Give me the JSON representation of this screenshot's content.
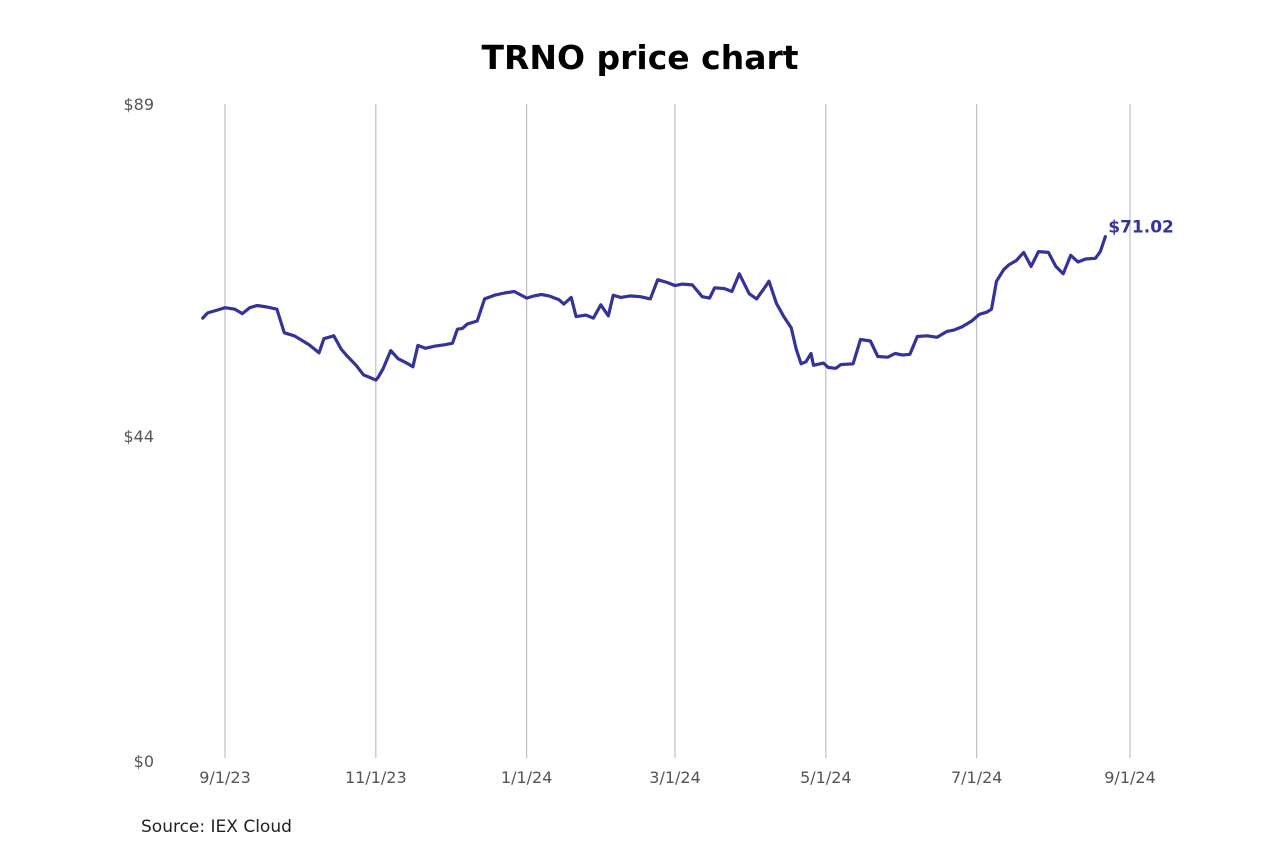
{
  "title": "TRNO price chart",
  "source": "Source: IEX Cloud",
  "colors": {
    "line": "#33339a",
    "grid": "#b4b4b4"
  },
  "chart_data": {
    "type": "line",
    "title": "TRNO price chart",
    "ylim": [
      0,
      89
    ],
    "xlim": [
      "2023-08-23",
      "2024-09-01"
    ],
    "y_ticks": [
      {
        "value": 0,
        "label": "$0"
      },
      {
        "value": 44,
        "label": "$44"
      },
      {
        "value": 89,
        "label": "$89"
      }
    ],
    "x_ticks": [
      {
        "date": "2023-09-01",
        "label": "9/1/23"
      },
      {
        "date": "2023-11-01",
        "label": "11/1/23"
      },
      {
        "date": "2024-01-01",
        "label": "1/1/24"
      },
      {
        "date": "2024-03-01",
        "label": "3/1/24"
      },
      {
        "date": "2024-05-01",
        "label": "5/1/24"
      },
      {
        "date": "2024-07-01",
        "label": "7/1/24"
      },
      {
        "date": "2024-09-01",
        "label": "9/1/24"
      }
    ],
    "grid": "vertical",
    "last_value_label": "$71.02",
    "series": [
      {
        "points": [
          [
            "2023-08-23",
            60.0
          ],
          [
            "2023-08-25",
            60.7
          ],
          [
            "2023-08-29",
            61.1
          ],
          [
            "2023-09-01",
            61.4
          ],
          [
            "2023-09-05",
            61.2
          ],
          [
            "2023-09-08",
            60.6
          ],
          [
            "2023-09-11",
            61.4
          ],
          [
            "2023-09-14",
            61.7
          ],
          [
            "2023-09-18",
            61.5
          ],
          [
            "2023-09-22",
            61.2
          ],
          [
            "2023-09-25",
            58.0
          ],
          [
            "2023-09-29",
            57.6
          ],
          [
            "2023-10-02",
            57.0
          ],
          [
            "2023-10-05",
            56.4
          ],
          [
            "2023-10-09",
            55.3
          ],
          [
            "2023-10-11",
            57.2
          ],
          [
            "2023-10-15",
            57.6
          ],
          [
            "2023-10-18",
            55.8
          ],
          [
            "2023-10-20",
            55.0
          ],
          [
            "2023-10-24",
            53.6
          ],
          [
            "2023-10-27",
            52.3
          ],
          [
            "2023-10-30",
            51.9
          ],
          [
            "2023-11-01",
            51.6
          ],
          [
            "2023-11-02",
            52.0
          ],
          [
            "2023-11-04",
            53.2
          ],
          [
            "2023-11-07",
            55.6
          ],
          [
            "2023-11-10",
            54.5
          ],
          [
            "2023-11-13",
            54.0
          ],
          [
            "2023-11-16",
            53.4
          ],
          [
            "2023-11-18",
            56.3
          ],
          [
            "2023-11-21",
            55.9
          ],
          [
            "2023-11-25",
            56.2
          ],
          [
            "2023-11-29",
            56.4
          ],
          [
            "2023-12-02",
            56.6
          ],
          [
            "2023-12-04",
            58.5
          ],
          [
            "2023-12-06",
            58.6
          ],
          [
            "2023-12-08",
            59.2
          ],
          [
            "2023-12-12",
            59.6
          ],
          [
            "2023-12-15",
            62.6
          ],
          [
            "2023-12-19",
            63.1
          ],
          [
            "2023-12-23",
            63.4
          ],
          [
            "2023-12-27",
            63.6
          ],
          [
            "2024-01-01",
            62.7
          ],
          [
            "2024-01-04",
            63.0
          ],
          [
            "2024-01-07",
            63.2
          ],
          [
            "2024-01-10",
            63.0
          ],
          [
            "2024-01-14",
            62.5
          ],
          [
            "2024-01-16",
            61.9
          ],
          [
            "2024-01-19",
            62.8
          ],
          [
            "2024-01-21",
            60.2
          ],
          [
            "2024-01-25",
            60.4
          ],
          [
            "2024-01-28",
            60.0
          ],
          [
            "2024-01-31",
            61.8
          ],
          [
            "2024-02-03",
            60.3
          ],
          [
            "2024-02-05",
            63.1
          ],
          [
            "2024-02-08",
            62.8
          ],
          [
            "2024-02-12",
            63.0
          ],
          [
            "2024-02-16",
            62.9
          ],
          [
            "2024-02-20",
            62.6
          ],
          [
            "2024-02-23",
            65.2
          ],
          [
            "2024-02-27",
            64.8
          ],
          [
            "2024-03-01",
            64.4
          ],
          [
            "2024-03-04",
            64.6
          ],
          [
            "2024-03-08",
            64.5
          ],
          [
            "2024-03-12",
            62.9
          ],
          [
            "2024-03-15",
            62.7
          ],
          [
            "2024-03-17",
            64.1
          ],
          [
            "2024-03-21",
            64.0
          ],
          [
            "2024-03-24",
            63.6
          ],
          [
            "2024-03-27",
            66.0
          ],
          [
            "2024-03-31",
            63.3
          ],
          [
            "2024-04-03",
            62.6
          ],
          [
            "2024-04-06",
            64.0
          ],
          [
            "2024-04-08",
            65.0
          ],
          [
            "2024-04-11",
            62.0
          ],
          [
            "2024-04-14",
            60.2
          ],
          [
            "2024-04-17",
            58.7
          ],
          [
            "2024-04-19",
            55.8
          ],
          [
            "2024-04-21",
            53.8
          ],
          [
            "2024-04-23",
            54.1
          ],
          [
            "2024-04-25",
            55.2
          ],
          [
            "2024-04-26",
            53.6
          ],
          [
            "2024-04-30",
            53.9
          ],
          [
            "2024-05-02",
            53.3
          ],
          [
            "2024-05-05",
            53.2
          ],
          [
            "2024-05-07",
            53.7
          ],
          [
            "2024-05-12",
            53.8
          ],
          [
            "2024-05-15",
            57.1
          ],
          [
            "2024-05-19",
            56.9
          ],
          [
            "2024-05-22",
            54.8
          ],
          [
            "2024-05-26",
            54.7
          ],
          [
            "2024-05-29",
            55.2
          ],
          [
            "2024-06-01",
            55.0
          ],
          [
            "2024-06-04",
            55.1
          ],
          [
            "2024-06-07",
            57.5
          ],
          [
            "2024-06-11",
            57.6
          ],
          [
            "2024-06-15",
            57.4
          ],
          [
            "2024-06-19",
            58.2
          ],
          [
            "2024-06-22",
            58.4
          ],
          [
            "2024-06-25",
            58.8
          ],
          [
            "2024-06-29",
            59.6
          ],
          [
            "2024-07-02",
            60.5
          ],
          [
            "2024-07-05",
            60.8
          ],
          [
            "2024-07-07",
            61.2
          ],
          [
            "2024-07-09",
            65.0
          ],
          [
            "2024-07-12",
            66.6
          ],
          [
            "2024-07-14",
            67.2
          ],
          [
            "2024-07-17",
            67.8
          ],
          [
            "2024-07-20",
            68.9
          ],
          [
            "2024-07-23",
            67.0
          ],
          [
            "2024-07-26",
            69.0
          ],
          [
            "2024-07-30",
            68.9
          ],
          [
            "2024-08-02",
            67.0
          ],
          [
            "2024-08-05",
            66.0
          ],
          [
            "2024-08-08",
            68.5
          ],
          [
            "2024-08-11",
            67.6
          ],
          [
            "2024-08-14",
            68.0
          ],
          [
            "2024-08-18",
            68.1
          ],
          [
            "2024-08-20",
            69.0
          ],
          [
            "2024-08-22",
            71.02
          ]
        ]
      }
    ]
  }
}
